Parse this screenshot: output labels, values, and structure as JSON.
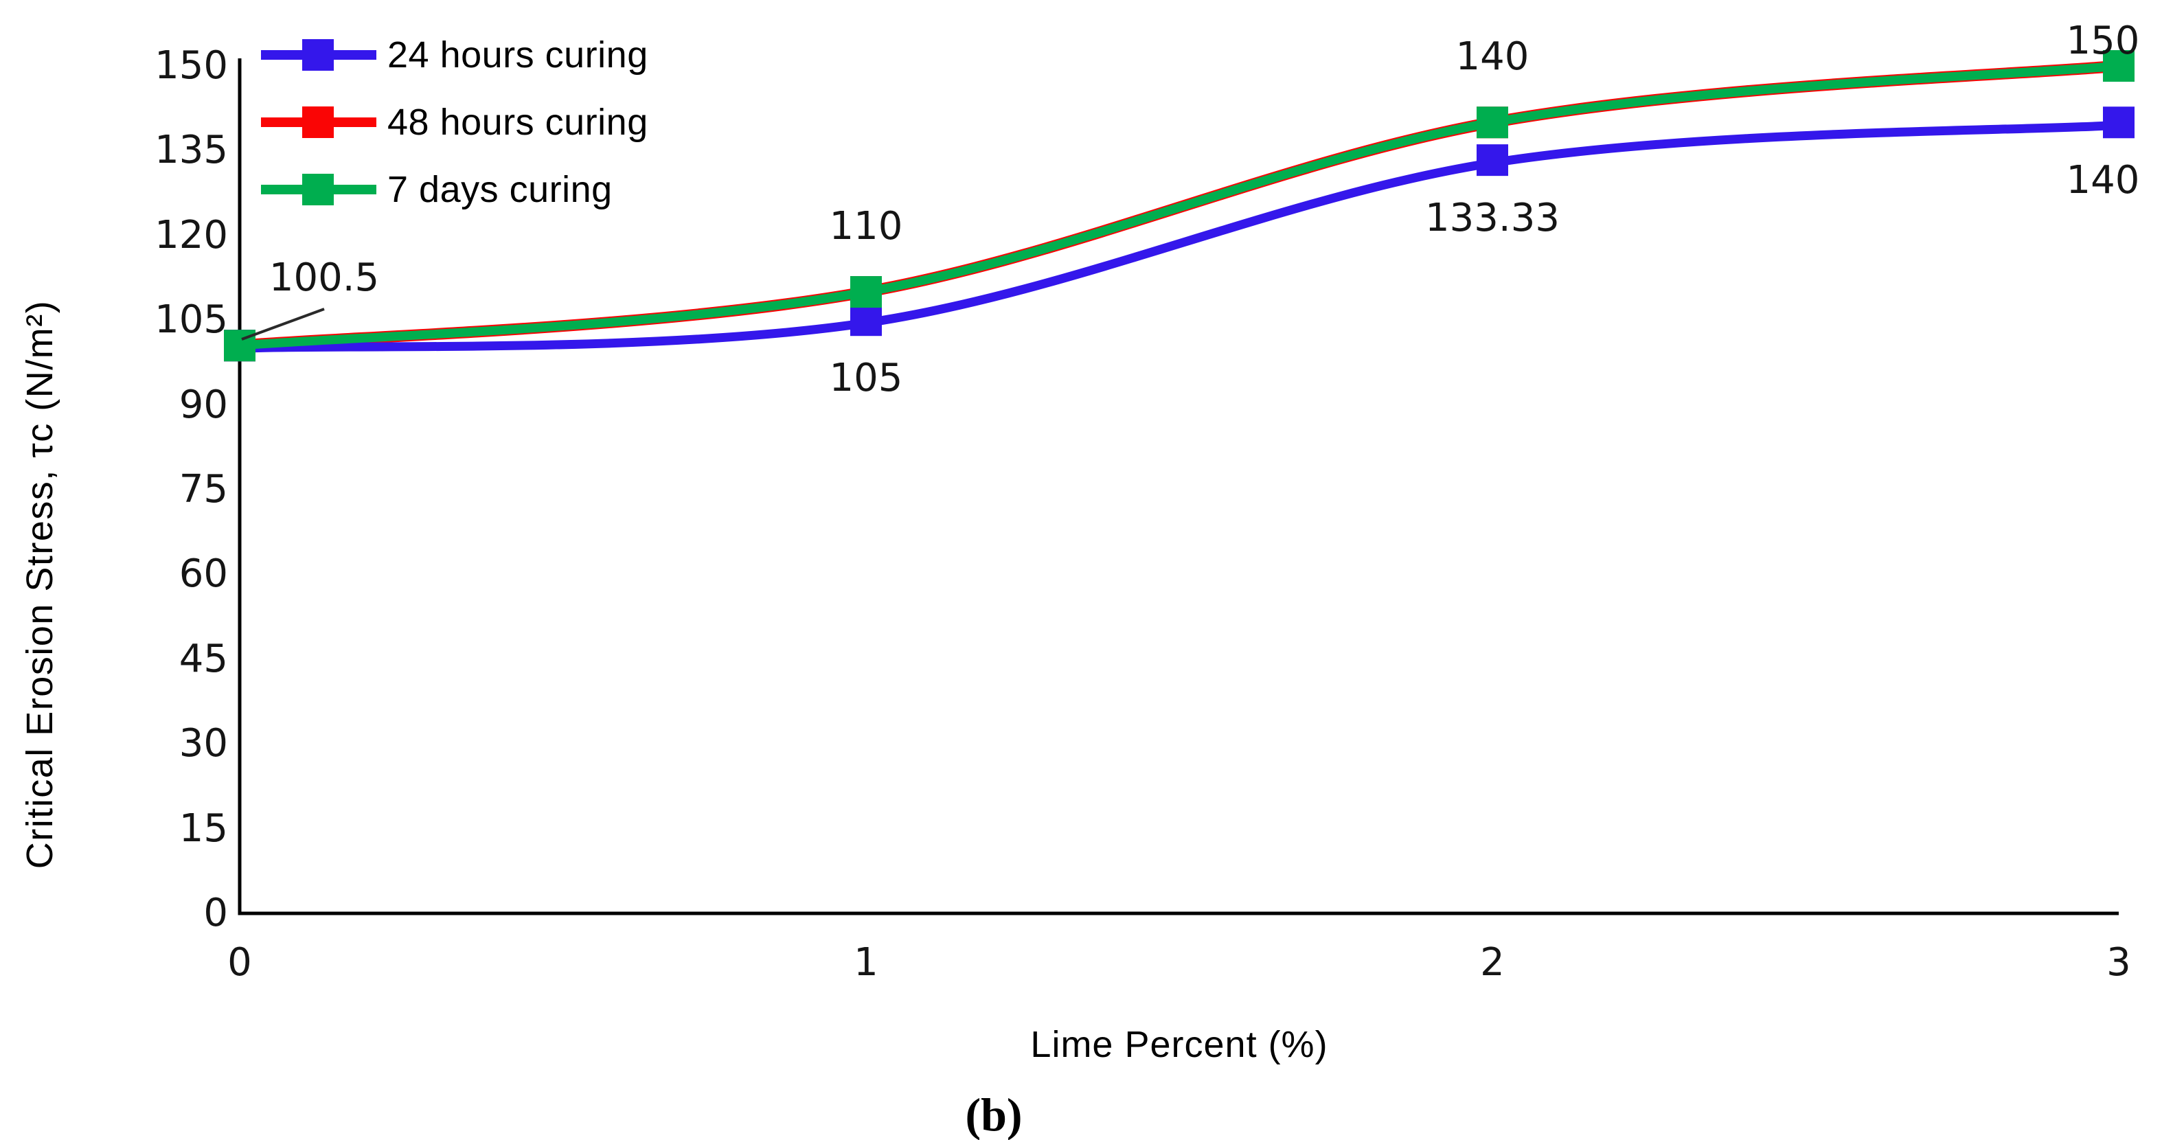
{
  "figure": {
    "caption": "(b)",
    "x_axis_title": "Lime Percent (%)",
    "y_axis_title": "Critical Erosion Stress, τc (N/m²)"
  },
  "chart_data": {
    "type": "line",
    "x": [
      0,
      1,
      2,
      3
    ],
    "xticks": [
      0,
      1,
      2,
      3
    ],
    "yticks": [
      0,
      15,
      30,
      45,
      60,
      75,
      90,
      105,
      120,
      135,
      150
    ],
    "xlim": [
      0,
      3
    ],
    "ylim": [
      0,
      150
    ],
    "grid": false,
    "legend_position": "top-left",
    "xlabel": "Lime Percent (%)",
    "ylabel": "Critical Erosion Stress, τc (N/m²)",
    "axis_color": "#000000",
    "label_color": "#151515",
    "series": [
      {
        "name": "24 hours curing",
        "color": "#3417EB",
        "marker": "square",
        "values": [
          100.5,
          105,
          133.33,
          140
        ],
        "point_labels": [
          "",
          "105",
          "133.33",
          "140"
        ],
        "label_position": "below"
      },
      {
        "name": "48 hours curing",
        "color": "#FA0505",
        "marker": "square",
        "values": [
          100.5,
          110,
          140,
          150
        ],
        "point_labels": [
          "",
          "",
          "",
          ""
        ],
        "label_position": "above",
        "visually_hidden_behind": "7 days curing"
      },
      {
        "name": "7 days curing",
        "color": "#00AE4F",
        "marker": "square",
        "values": [
          100.5,
          110,
          140,
          150
        ],
        "point_labels": [
          "",
          "110",
          "140",
          "150"
        ],
        "label_position": "above"
      }
    ],
    "annotations": [
      {
        "text": "100.5",
        "x": 0,
        "value": 100.5,
        "leader_line": true
      }
    ]
  }
}
